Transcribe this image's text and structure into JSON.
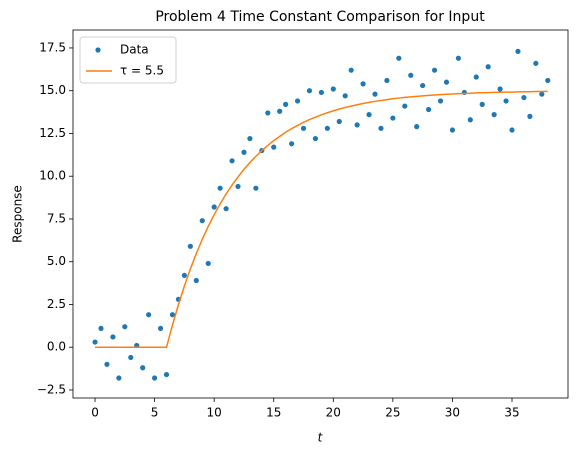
{
  "chart_data": {
    "type": "scatter",
    "title": "Problem 4 Time Constant Comparison for Input",
    "xlabel": "t",
    "ylabel": "Response",
    "x": [
      0,
      0.5,
      1,
      1.5,
      2,
      2.5,
      3,
      3.5,
      4,
      4.5,
      5,
      5.5,
      6,
      6.5,
      7,
      7.5,
      8,
      8.5,
      9,
      9.5,
      10,
      10.5,
      11,
      11.5,
      12,
      12.5,
      13,
      13.5,
      14,
      14.5,
      15,
      15.5,
      16,
      16.5,
      17,
      17.5,
      18,
      18.5,
      19,
      19.5,
      20,
      20.5,
      21,
      21.5,
      22,
      22.5,
      23,
      23.5,
      24,
      24.5,
      25,
      25.5,
      26,
      26.5,
      27,
      27.5,
      28,
      28.5,
      29,
      29.5,
      30,
      30.5,
      31,
      31.5,
      32,
      32.5,
      33,
      33.5,
      34,
      34.5,
      35,
      35.5,
      36,
      36.5,
      37,
      37.5,
      38
    ],
    "series": [
      {
        "name": "Data",
        "type": "scatter",
        "color": "#1f77b4",
        "values": [
          0.3,
          1.1,
          -1.0,
          0.6,
          -1.8,
          1.2,
          -0.6,
          0.1,
          -1.2,
          1.9,
          -1.8,
          1.1,
          -1.6,
          1.9,
          2.8,
          4.2,
          5.9,
          3.9,
          7.4,
          4.9,
          8.2,
          9.3,
          8.1,
          10.9,
          9.4,
          11.4,
          12.2,
          9.3,
          11.5,
          13.7,
          11.7,
          13.8,
          14.2,
          11.9,
          14.4,
          12.8,
          15.0,
          12.2,
          14.9,
          12.8,
          15.1,
          13.2,
          14.7,
          16.2,
          13.0,
          15.4,
          13.6,
          14.8,
          12.8,
          15.6,
          13.4,
          16.9,
          14.1,
          15.9,
          12.9,
          15.3,
          13.9,
          16.2,
          14.4,
          15.5,
          12.7,
          16.9,
          14.9,
          13.3,
          15.8,
          14.2,
          16.4,
          13.6,
          15.1,
          14.4,
          12.7,
          17.3,
          14.6,
          13.5,
          16.6,
          14.8,
          15.6
        ]
      },
      {
        "name": "τ = 5.5",
        "type": "line",
        "color": "#ff7f0e",
        "values": [
          0,
          0,
          0,
          0,
          0,
          0,
          0,
          0,
          0,
          0,
          0,
          0,
          0,
          1.3,
          2.49,
          3.58,
          4.57,
          5.48,
          6.31,
          7.06,
          7.75,
          8.38,
          8.96,
          9.48,
          9.96,
          10.4,
          10.8,
          11.16,
          11.5,
          11.8,
          12.08,
          12.33,
          12.57,
          12.78,
          12.97,
          13.15,
          13.31,
          13.45,
          13.59,
          13.71,
          13.82,
          13.93,
          14.02,
          14.1,
          14.18,
          14.25,
          14.32,
          14.38,
          14.43,
          14.48,
          14.53,
          14.57,
          14.61,
          14.64,
          14.67,
          14.7,
          14.73,
          14.75,
          14.77,
          14.79,
          14.81,
          14.83,
          14.84,
          14.85,
          14.87,
          14.88,
          14.89,
          14.9,
          14.91,
          14.92,
          14.92,
          14.93,
          14.94,
          14.94,
          14.95,
          14.95,
          14.96
        ]
      }
    ],
    "xlim": [
      -1.85,
      39.7
    ],
    "xticks": [
      0,
      5,
      10,
      15,
      20,
      25,
      30,
      35
    ],
    "ylim": [
      -2.97,
      18.55
    ],
    "yticks": [
      {
        "value": -2.5,
        "label": "−2.5"
      },
      {
        "value": 0,
        "label": "0.0"
      },
      2.5,
      {
        "value": 5,
        "label": "5.0"
      },
      7.5,
      {
        "value": 10,
        "label": "10.0"
      },
      12.5,
      {
        "value": 15,
        "label": "15.0"
      },
      17.5
    ],
    "legend": "upper left",
    "grid": false
  }
}
